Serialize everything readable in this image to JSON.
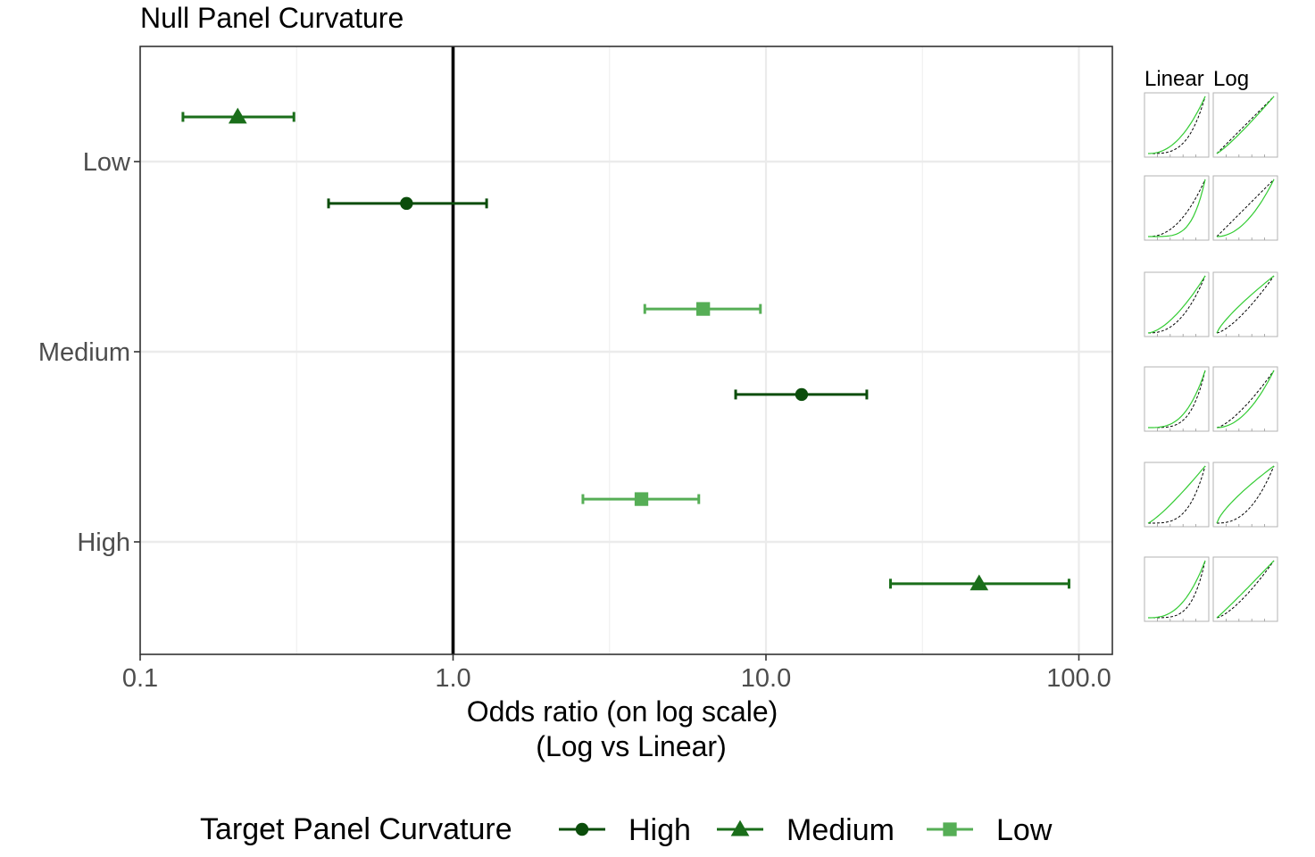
{
  "chart_data": {
    "type": "scatter",
    "title": "Null Panel Curvature",
    "xlabel_lines": [
      "Odds ratio (on log scale)",
      "(Log vs Linear)"
    ],
    "ylabel": "",
    "x_scale": "log10",
    "xlim": [
      0.1,
      125
    ],
    "x_ticks": [
      0.1,
      1.0,
      10.0,
      100.0
    ],
    "x_tick_labels": [
      "0.1",
      "1.0",
      "10.0",
      "100.0"
    ],
    "categories": [
      "Low",
      "Medium",
      "High"
    ],
    "reference_line_x": 1.0,
    "grid": true,
    "legend": {
      "title": "Target Panel Curvature",
      "position": "bottom",
      "entries": [
        {
          "name": "High",
          "color": "#0b4d0b",
          "marker": "circle"
        },
        {
          "name": "Medium",
          "color": "#1a6e1a",
          "marker": "triangle"
        },
        {
          "name": "Low",
          "color": "#56ae56",
          "marker": "square"
        }
      ]
    },
    "series": [
      {
        "name": "Medium",
        "color": "#1a6e1a",
        "marker": "triangle",
        "points": [
          {
            "category": "Low",
            "estimate": 0.205,
            "lower": 0.137,
            "upper": 0.31
          }
        ]
      },
      {
        "name": "High",
        "color": "#0b4d0b",
        "marker": "circle",
        "points": [
          {
            "category": "Low",
            "estimate": 0.71,
            "lower": 0.4,
            "upper": 1.28
          },
          {
            "category": "Medium",
            "estimate": 13.0,
            "lower": 8.0,
            "upper": 21.0
          }
        ]
      },
      {
        "name": "Low",
        "color": "#56ae56",
        "marker": "square",
        "points": [
          {
            "category": "Medium",
            "estimate": 6.3,
            "lower": 4.1,
            "upper": 9.6
          },
          {
            "category": "High",
            "estimate": 4.0,
            "lower": 2.6,
            "upper": 6.1
          }
        ]
      },
      {
        "name": "Medium",
        "color": "#1a6e1a",
        "marker": "triangle",
        "points": [
          {
            "category": "High",
            "estimate": 48.0,
            "lower": 25.0,
            "upper": 93.0
          }
        ]
      }
    ],
    "thumbnails": {
      "headers": [
        "Linear",
        "Log"
      ],
      "rows": 6
    }
  }
}
